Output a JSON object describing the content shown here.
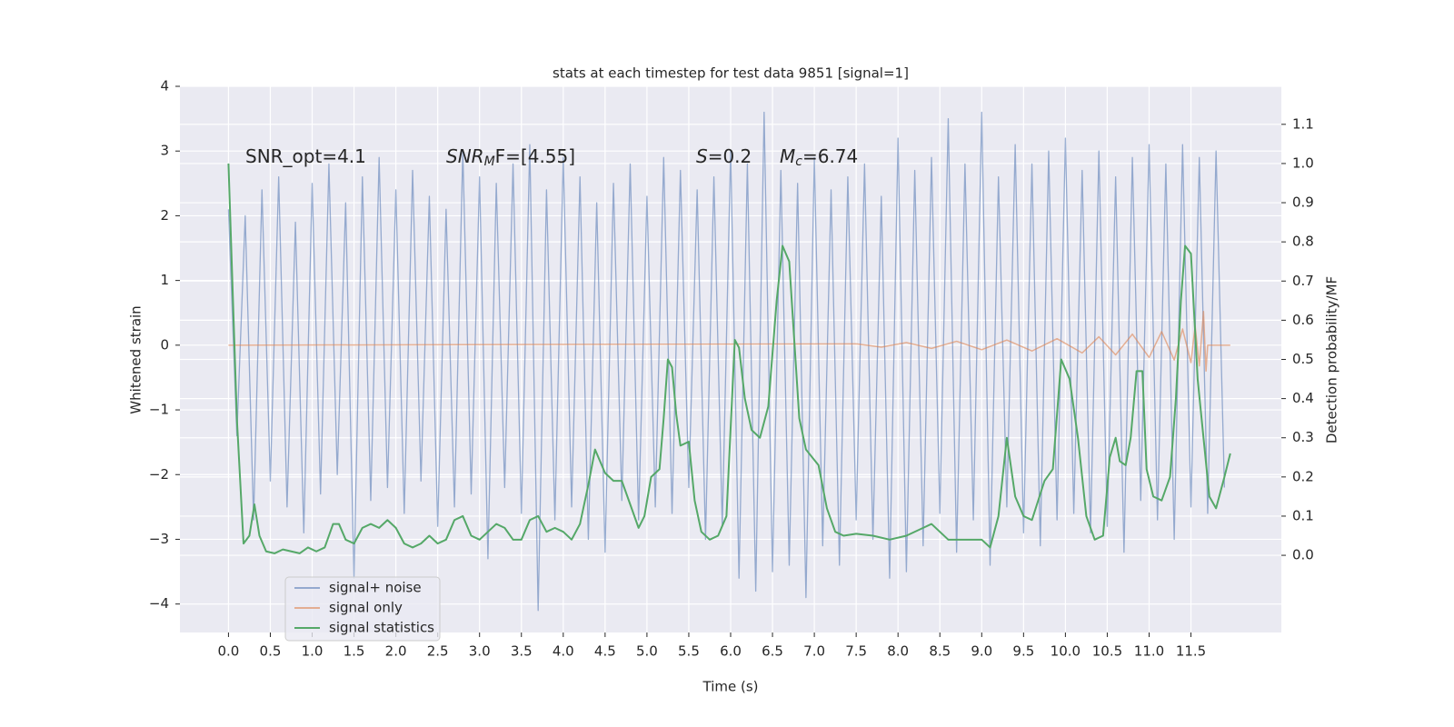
{
  "chart_data": {
    "type": "line",
    "title": "stats at each timestep for test data 9851 [signal=1]",
    "xlabel": "Time (s)",
    "ylabel": "Whitened strain",
    "y2label": "Detection probability/MF",
    "xlim": [
      -0.58,
      12.58
    ],
    "ylim": [
      -4.44,
      4
    ],
    "y2lim": [
      -0.197,
      1.197
    ],
    "xticks": [
      {
        "value": 0,
        "label": "0.0"
      },
      0.5,
      {
        "value": 1,
        "label": "1.0"
      },
      1.5,
      {
        "value": 2,
        "label": "2.0"
      },
      2.5,
      {
        "value": 3,
        "label": "3.0"
      },
      3.5,
      {
        "value": 4,
        "label": "4.0"
      },
      4.5,
      {
        "value": 5,
        "label": "5.0"
      },
      5.5,
      {
        "value": 6,
        "label": "6.0"
      },
      6.5,
      {
        "value": 7,
        "label": "7.0"
      },
      7.5,
      {
        "value": 8,
        "label": "8.0"
      },
      8.5,
      {
        "value": 9,
        "label": "9.0"
      },
      9.5,
      {
        "value": 10,
        "label": "10.0"
      },
      10.5,
      {
        "value": 11,
        "label": "11.0"
      },
      11.5
    ],
    "yticks": [
      {
        "value": -4,
        "label": "−4"
      },
      {
        "value": -3,
        "label": "−3"
      },
      {
        "value": -2,
        "label": "−2"
      },
      {
        "value": -1,
        "label": "−1"
      },
      0,
      1,
      2,
      3,
      4
    ],
    "y2ticks": [
      {
        "value": 0,
        "label": "0.0"
      },
      0.1,
      0.2,
      0.3,
      0.4,
      0.5,
      0.6,
      0.7,
      0.8,
      0.9,
      {
        "value": 1,
        "label": "1.0"
      },
      1.1
    ],
    "grid": true,
    "legend": "lower left",
    "annotations": [
      [
        {
          "text": "SNR_opt=4.1"
        }
      ],
      [
        {
          "text": "SNR",
          "style": "italic"
        },
        {
          "text": "M",
          "style": "italic-sub"
        },
        {
          "text": "F=[4.55]"
        }
      ],
      [
        {
          "text": "S",
          "style": "italic"
        },
        {
          "text": "=0.2"
        }
      ],
      [
        {
          "text": "M",
          "style": "italic"
        },
        {
          "text": "c",
          "style": "italic-sub"
        },
        {
          "text": "=6.74"
        }
      ]
    ],
    "series": [
      {
        "name": "signal+ noise",
        "color": "#4c72b0",
        "x": [
          0,
          0.1,
          0.2,
          0.3,
          0.4,
          0.5,
          0.6,
          0.7,
          0.8,
          0.9,
          1,
          1.1,
          1.2,
          1.3,
          1.4,
          1.5,
          1.6,
          1.7,
          1.8,
          1.9,
          2,
          2.1,
          2.2,
          2.3,
          2.4,
          2.5,
          2.6,
          2.7,
          2.8,
          2.9,
          3,
          3.1,
          3.2,
          3.3,
          3.4,
          3.5,
          3.6,
          3.7,
          3.8,
          3.9,
          4,
          4.1,
          4.2,
          4.3,
          4.4,
          4.5,
          4.6,
          4.7,
          4.8,
          4.9,
          5,
          5.1,
          5.2,
          5.3,
          5.4,
          5.5,
          5.6,
          5.7,
          5.8,
          5.9,
          6,
          6.1,
          6.2,
          6.3,
          6.4,
          6.5,
          6.6,
          6.7,
          6.8,
          6.9,
          7,
          7.1,
          7.2,
          7.3,
          7.4,
          7.5,
          7.6,
          7.7,
          7.8,
          7.9,
          8,
          8.1,
          8.2,
          8.3,
          8.4,
          8.5,
          8.6,
          8.7,
          8.8,
          8.9,
          9,
          9.1,
          9.2,
          9.3,
          9.4,
          9.5,
          9.6,
          9.7,
          9.8,
          9.9,
          10,
          10.1,
          10.2,
          10.3,
          10.4,
          10.5,
          10.6,
          10.7,
          10.8,
          10.9,
          11,
          11.1,
          11.2,
          11.3,
          11.4,
          11.5,
          11.6,
          11.7,
          11.8,
          11.9
        ],
        "values": [
          2.1,
          -1.4,
          2.0,
          -2.7,
          2.4,
          -2.1,
          2.6,
          -2.5,
          1.9,
          -2.9,
          2.5,
          -2.3,
          2.8,
          -2.0,
          2.2,
          -3.6,
          2.6,
          -2.4,
          2.9,
          -2.2,
          2.4,
          -2.6,
          2.7,
          -2.1,
          2.3,
          -2.8,
          2.1,
          -2.5,
          3.0,
          -2.3,
          2.6,
          -3.3,
          2.5,
          -2.2,
          2.8,
          -2.6,
          3.1,
          -4.1,
          2.4,
          -2.7,
          2.9,
          -2.5,
          2.6,
          -3.0,
          2.2,
          -3.2,
          2.5,
          -2.4,
          2.8,
          -2.7,
          2.3,
          -2.5,
          2.9,
          -2.6,
          2.7,
          -2.2,
          2.4,
          -3.0,
          2.6,
          -2.8,
          3.0,
          -3.6,
          2.8,
          -3.8,
          3.6,
          -3.5,
          2.7,
          -3.4,
          2.5,
          -3.9,
          2.9,
          -3.1,
          2.4,
          -3.4,
          2.6,
          -2.7,
          2.8,
          -3.0,
          2.3,
          -3.6,
          3.2,
          -3.5,
          2.7,
          -3.1,
          2.9,
          -2.6,
          3.5,
          -3.2,
          2.8,
          -2.7,
          3.6,
          -3.4,
          2.6,
          -2.5,
          3.1,
          -2.9,
          2.8,
          -3.1,
          3.0,
          -2.7,
          3.2,
          -2.6,
          2.7,
          -2.9,
          3.0,
          -2.8,
          2.6,
          -3.2,
          2.9,
          -2.4,
          3.1,
          -2.7,
          2.8,
          -3.0,
          3.1,
          -2.5,
          2.9,
          -2.6,
          3.0,
          -2.2
        ]
      },
      {
        "name": "signal only",
        "color": "#dd8452",
        "x": [
          0,
          7.5,
          7.8,
          8.1,
          8.4,
          8.7,
          9.0,
          9.3,
          9.6,
          9.9,
          10.2,
          10.4,
          10.6,
          10.8,
          11.0,
          11.15,
          11.3,
          11.4,
          11.5,
          11.55,
          11.6,
          11.65,
          11.68,
          11.7,
          11.97
        ],
        "values": [
          0,
          0.02,
          -0.03,
          0.04,
          -0.05,
          0.06,
          -0.07,
          0.08,
          -0.09,
          0.1,
          -0.12,
          0.13,
          -0.15,
          0.17,
          -0.19,
          0.21,
          -0.23,
          0.25,
          -0.27,
          0.3,
          -0.32,
          0.52,
          -0.4,
          0,
          0
        ]
      },
      {
        "name": "signal statistics",
        "color": "#55a868",
        "axis": "y2",
        "x": [
          0,
          0.1,
          0.18,
          0.25,
          0.31,
          0.37,
          0.45,
          0.55,
          0.65,
          0.75,
          0.85,
          0.95,
          1.05,
          1.15,
          1.25,
          1.32,
          1.4,
          1.5,
          1.6,
          1.7,
          1.8,
          1.9,
          2.0,
          2.1,
          2.2,
          2.3,
          2.4,
          2.5,
          2.6,
          2.7,
          2.8,
          2.9,
          3.0,
          3.1,
          3.2,
          3.3,
          3.4,
          3.5,
          3.6,
          3.7,
          3.8,
          3.9,
          4.0,
          4.1,
          4.2,
          4.3,
          4.38,
          4.5,
          4.6,
          4.7,
          4.8,
          4.9,
          4.97,
          5.05,
          5.15,
          5.2,
          5.25,
          5.3,
          5.35,
          5.4,
          5.5,
          5.57,
          5.65,
          5.75,
          5.85,
          5.95,
          6.05,
          6.1,
          6.17,
          6.25,
          6.35,
          6.45,
          6.55,
          6.62,
          6.7,
          6.82,
          6.9,
          7.05,
          7.15,
          7.25,
          7.35,
          7.5,
          7.7,
          7.9,
          8.1,
          8.3,
          8.4,
          8.5,
          8.6,
          8.8,
          9.0,
          9.1,
          9.2,
          9.3,
          9.4,
          9.5,
          9.6,
          9.75,
          9.85,
          9.95,
          10.05,
          10.15,
          10.25,
          10.35,
          10.45,
          10.53,
          10.6,
          10.65,
          10.72,
          10.78,
          10.85,
          10.92,
          10.97,
          11.05,
          11.15,
          11.25,
          11.32,
          11.38,
          11.43,
          11.5,
          11.58,
          11.65,
          11.72,
          11.8,
          11.9,
          11.97
        ],
        "values": [
          1.0,
          0.35,
          0.03,
          0.05,
          0.13,
          0.05,
          0.01,
          0.005,
          0.015,
          0.01,
          0.005,
          0.02,
          0.01,
          0.02,
          0.08,
          0.08,
          0.04,
          0.03,
          0.07,
          0.08,
          0.07,
          0.09,
          0.07,
          0.03,
          0.02,
          0.03,
          0.05,
          0.03,
          0.04,
          0.09,
          0.1,
          0.05,
          0.04,
          0.06,
          0.08,
          0.07,
          0.04,
          0.04,
          0.09,
          0.1,
          0.06,
          0.07,
          0.06,
          0.04,
          0.08,
          0.18,
          0.27,
          0.21,
          0.19,
          0.19,
          0.13,
          0.07,
          0.1,
          0.2,
          0.22,
          0.35,
          0.5,
          0.48,
          0.36,
          0.28,
          0.29,
          0.14,
          0.06,
          0.04,
          0.05,
          0.1,
          0.55,
          0.53,
          0.4,
          0.32,
          0.3,
          0.38,
          0.65,
          0.79,
          0.75,
          0.35,
          0.27,
          0.23,
          0.12,
          0.06,
          0.05,
          0.055,
          0.05,
          0.04,
          0.05,
          0.07,
          0.08,
          0.06,
          0.04,
          0.04,
          0.04,
          0.02,
          0.1,
          0.3,
          0.15,
          0.1,
          0.09,
          0.19,
          0.22,
          0.5,
          0.45,
          0.3,
          0.1,
          0.04,
          0.05,
          0.25,
          0.3,
          0.24,
          0.23,
          0.3,
          0.47,
          0.47,
          0.22,
          0.15,
          0.14,
          0.2,
          0.4,
          0.65,
          0.79,
          0.77,
          0.45,
          0.3,
          0.15,
          0.12,
          0.2,
          0.26
        ]
      }
    ]
  }
}
